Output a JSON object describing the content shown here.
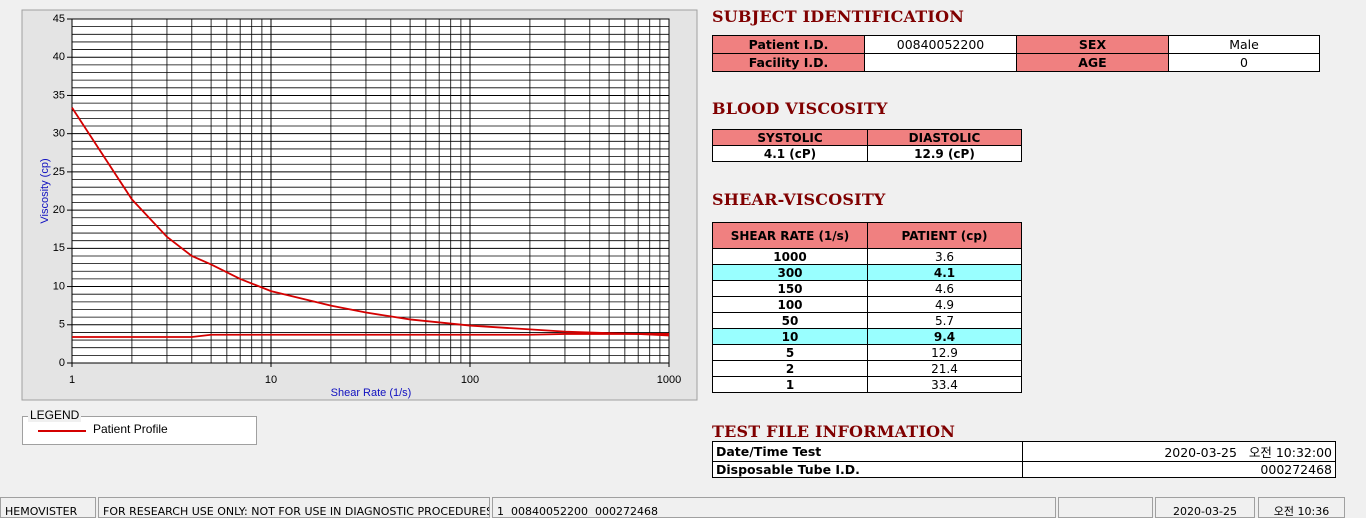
{
  "chart_data": {
    "type": "line",
    "x_label": "Shear Rate (1/s)",
    "y_label": "Viscosity (cp)",
    "xlog": true,
    "grid": true,
    "xlim": [
      1,
      1000
    ],
    "xticks": [
      1,
      10,
      100,
      1000
    ],
    "ylim": [
      0,
      45
    ],
    "yticks": [
      0,
      5,
      10,
      15,
      20,
      25,
      30,
      35,
      40,
      45
    ],
    "x": [
      1,
      2,
      3,
      4,
      5,
      7,
      10,
      20,
      30,
      50,
      100,
      150,
      200,
      300,
      500,
      700,
      1000
    ],
    "series": [
      {
        "name": "Patient Profile",
        "color": "#d40000",
        "values": [
          33.4,
          21.4,
          16.5,
          14.0,
          12.9,
          11.0,
          9.4,
          7.5,
          6.6,
          5.7,
          4.9,
          4.6,
          4.4,
          4.1,
          3.9,
          3.8,
          3.6
        ]
      },
      {
        "color": "#d40000",
        "values": [
          3.4,
          3.4,
          3.4,
          3.4,
          3.7,
          3.7,
          3.7,
          3.7,
          3.7,
          3.7,
          3.7,
          3.7,
          3.7,
          3.8,
          3.8,
          3.8,
          3.8
        ]
      }
    ]
  },
  "legend": {
    "title": "LEGEND"
  },
  "subject_identification": {
    "title": "SUBJECT IDENTIFICATION",
    "patient_id_label": "Patient I.D.",
    "patient_id": "00840052200",
    "sex_label": "SEX",
    "sex": "Male",
    "facility_id_label": "Facility I.D.",
    "age_label": "AGE",
    "age": 0
  },
  "blood_viscosity": {
    "title": "BLOOD VISCOSITY",
    "headers": [
      "SYSTOLIC",
      "DIASTOLIC"
    ],
    "values": [
      "4.1 (cP)",
      "12.9 (cP)"
    ]
  },
  "shear_viscosity": {
    "title": "SHEAR-VISCOSITY",
    "headers": [
      "SHEAR RATE (1/s)",
      "PATIENT (cp)"
    ],
    "rows": [
      [
        1000,
        3.6
      ],
      [
        300,
        4.1
      ],
      [
        150,
        4.6
      ],
      [
        100,
        4.9
      ],
      [
        50,
        5.7
      ],
      [
        10,
        9.4
      ],
      [
        5,
        12.9
      ],
      [
        2,
        21.4
      ],
      [
        1,
        33.4
      ]
    ]
  },
  "test_file": {
    "title": "TEST FILE INFORMATION",
    "rows": [
      [
        "Date/Time Test",
        "2020-03-25   오전 10:32:00"
      ],
      [
        "Disposable Tube I.D.",
        "000272468"
      ]
    ]
  },
  "status_bar": [
    "HEMOVISTER",
    "FOR RESEARCH USE ONLY: NOT FOR USE IN DIAGNOSTIC PROCEDURES",
    "1  00840052200  000272468",
    "2020-03-25",
    "오전 10:36"
  ]
}
